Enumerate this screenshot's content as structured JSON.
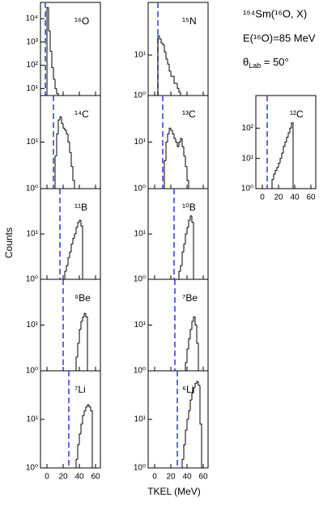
{
  "figure": {
    "annotation": [
      "¹⁵⁴Sm(¹⁶O, X)",
      "E(¹⁶O)=85 MeV"
    ],
    "angle": [
      "θ",
      "Lab",
      " = 50°"
    ],
    "xlabel": "TKEL (MeV)",
    "ylabel": "Counts"
  },
  "chart_data": [
    {
      "type": "histogram",
      "label": "¹⁶O",
      "bins": [
        0,
        2,
        4,
        6,
        8,
        10,
        12,
        14
      ],
      "values": [
        30000,
        3000,
        400,
        80,
        25,
        10,
        6
      ],
      "color": "#000000",
      "threshold": -2,
      "threshold_color": "#2b3bd6",
      "log_y": true,
      "xlim": [
        -8,
        66
      ],
      "xticks": [
        0,
        20,
        40,
        60
      ],
      "xtick_labels": false,
      "ylim": [
        5,
        50000
      ],
      "yticks": [
        {
          "value": 10,
          "label": "10¹"
        },
        {
          "value": 100,
          "label": "10²"
        },
        {
          "value": 1000,
          "label": "10³"
        },
        {
          "value": 10000,
          "label": "10⁴"
        }
      ]
    },
    {
      "type": "histogram",
      "label": "¹⁵N",
      "bins": [
        4,
        6,
        8,
        10,
        12,
        14,
        16,
        18,
        20,
        22,
        24,
        26,
        28,
        30,
        32
      ],
      "values": [
        30,
        25,
        20,
        18,
        12,
        8,
        6,
        4,
        3,
        3,
        2,
        2,
        1.5,
        1.2
      ],
      "color": "#000000",
      "threshold": 4,
      "threshold_color": "#2b3bd6",
      "log_y": true,
      "xlim": [
        -8,
        66
      ],
      "xticks": [
        0,
        20,
        40,
        60
      ],
      "xtick_labels": false,
      "ylim": [
        1,
        200
      ],
      "yticks": [
        {
          "value": 1,
          "label": "10⁰"
        },
        {
          "value": 10,
          "label": "10¹"
        }
      ]
    },
    {
      "type": "histogram",
      "label": "¹⁴C",
      "bins": [
        10,
        12,
        14,
        16,
        18,
        20,
        22,
        24,
        26,
        28,
        30,
        32,
        34
      ],
      "values": [
        5,
        15,
        30,
        35,
        25,
        20,
        18,
        15,
        10,
        6,
        3,
        1.5
      ],
      "color": "#000000",
      "threshold": 8,
      "threshold_color": "#2b3bd6",
      "log_y": true,
      "xlim": [
        -8,
        66
      ],
      "xticks": [
        0,
        20,
        40,
        60
      ],
      "xtick_labels": false,
      "ylim": [
        1,
        100
      ],
      "yticks": [
        {
          "value": 1,
          "label": "10⁰"
        },
        {
          "value": 10,
          "label": "10¹"
        }
      ]
    },
    {
      "type": "histogram",
      "label": "¹³C",
      "bins": [
        12,
        14,
        16,
        18,
        20,
        22,
        24,
        26,
        28,
        30,
        32,
        34,
        36,
        38,
        40,
        42
      ],
      "values": [
        4,
        10,
        15,
        20,
        18,
        15,
        12,
        10,
        8,
        10,
        12,
        8,
        5,
        3,
        1.5
      ],
      "color": "#000000",
      "threshold": 10,
      "threshold_color": "#2b3bd6",
      "log_y": true,
      "xlim": [
        -8,
        66
      ],
      "xticks": [
        0,
        20,
        40,
        60
      ],
      "xtick_labels": false,
      "ylim": [
        1,
        100
      ],
      "yticks": [
        {
          "value": 1,
          "label": "10⁰"
        },
        {
          "value": 10,
          "label": "10¹"
        }
      ]
    },
    {
      "type": "histogram",
      "label": "¹²C",
      "bins": [
        12,
        14,
        16,
        18,
        20,
        22,
        24,
        26,
        28,
        30,
        32,
        34,
        36,
        38
      ],
      "values": [
        2,
        3,
        4,
        5,
        7,
        10,
        15,
        25,
        35,
        50,
        70,
        100,
        150
      ],
      "color": "#000000",
      "threshold": 6,
      "threshold_color": "#2b3bd6",
      "log_y": true,
      "xlim": [
        -8,
        66
      ],
      "xticks": [
        0,
        20,
        40,
        60
      ],
      "xtick_labels": true,
      "ylim": [
        1,
        1200
      ],
      "yticks": [
        {
          "value": 1,
          "label": "10⁰"
        },
        {
          "value": 10,
          "label": "10¹"
        },
        {
          "value": 100,
          "label": "10²"
        }
      ]
    },
    {
      "type": "histogram",
      "label": "¹¹B",
      "bins": [
        22,
        24,
        26,
        28,
        30,
        32,
        34,
        36,
        38,
        40,
        42,
        44
      ],
      "values": [
        1.5,
        2,
        3,
        4,
        6,
        8,
        10,
        14,
        18,
        20,
        15
      ],
      "color": "#000000",
      "threshold": 16,
      "threshold_color": "#2b3bd6",
      "log_y": true,
      "xlim": [
        -8,
        66
      ],
      "xticks": [
        0,
        20,
        40,
        60
      ],
      "xtick_labels": false,
      "ylim": [
        1,
        100
      ],
      "yticks": [
        {
          "value": 1,
          "label": "10⁰"
        },
        {
          "value": 10,
          "label": "10¹"
        }
      ]
    },
    {
      "type": "histogram",
      "label": "¹⁰B",
      "bins": [
        30,
        32,
        34,
        36,
        38,
        40,
        42,
        44,
        46,
        48
      ],
      "values": [
        1.5,
        2,
        4,
        6,
        10,
        14,
        20,
        25,
        18
      ],
      "color": "#000000",
      "threshold": 24,
      "threshold_color": "#2b3bd6",
      "log_y": true,
      "xlim": [
        -8,
        66
      ],
      "xticks": [
        0,
        20,
        40,
        60
      ],
      "xtick_labels": false,
      "ylim": [
        1,
        100
      ],
      "yticks": [
        {
          "value": 1,
          "label": "10⁰"
        },
        {
          "value": 10,
          "label": "10¹"
        }
      ]
    },
    {
      "type": "histogram",
      "label": "⁹Be",
      "bins": [
        36,
        38,
        40,
        42,
        44,
        46,
        48,
        50
      ],
      "values": [
        2,
        4,
        8,
        12,
        15,
        18,
        15
      ],
      "color": "#000000",
      "threshold": 20,
      "threshold_color": "#2b3bd6",
      "log_y": true,
      "xlim": [
        -8,
        66
      ],
      "xticks": [
        0,
        20,
        40,
        60
      ],
      "xtick_labels": false,
      "ylim": [
        1,
        100
      ],
      "yticks": [
        {
          "value": 1,
          "label": "10⁰"
        },
        {
          "value": 10,
          "label": "10¹"
        }
      ]
    },
    {
      "type": "histogram",
      "label": "⁷Be",
      "bins": [
        38,
        40,
        42,
        44,
        46,
        48,
        50,
        52,
        54
      ],
      "values": [
        1.5,
        3,
        5,
        8,
        12,
        15,
        10,
        4
      ],
      "color": "#000000",
      "threshold": 25,
      "threshold_color": "#2b3bd6",
      "log_y": true,
      "xlim": [
        -8,
        66
      ],
      "xticks": [
        0,
        20,
        40,
        60
      ],
      "xtick_labels": false,
      "ylim": [
        1,
        100
      ],
      "yticks": [
        {
          "value": 1,
          "label": "10⁰"
        },
        {
          "value": 10,
          "label": "10¹"
        }
      ]
    },
    {
      "type": "histogram",
      "label": "⁷Li",
      "bins": [
        36,
        38,
        40,
        42,
        44,
        46,
        48,
        50,
        52,
        54,
        56
      ],
      "values": [
        1.5,
        3,
        5,
        8,
        12,
        15,
        18,
        20,
        18,
        15
      ],
      "color": "#000000",
      "threshold": 27,
      "threshold_color": "#2b3bd6",
      "log_y": true,
      "xlim": [
        -8,
        66
      ],
      "xticks": [
        0,
        20,
        40,
        60
      ],
      "xtick_labels": true,
      "ylim": [
        1,
        100
      ],
      "yticks": [
        {
          "value": 1,
          "label": "10⁰"
        },
        {
          "value": 10,
          "label": "10¹"
        }
      ]
    },
    {
      "type": "histogram",
      "label": "⁶Li",
      "bins": [
        34,
        36,
        38,
        40,
        42,
        44,
        46,
        48,
        50,
        52,
        54,
        56,
        58
      ],
      "values": [
        1.5,
        3,
        6,
        10,
        15,
        25,
        35,
        45,
        55,
        60,
        50,
        8
      ],
      "color": "#000000",
      "threshold": 28,
      "threshold_color": "#2b3bd6",
      "log_y": true,
      "xlim": [
        -8,
        66
      ],
      "xticks": [
        0,
        20,
        40,
        60
      ],
      "xtick_labels": true,
      "ylim": [
        1,
        100
      ],
      "yticks": [
        {
          "value": 1,
          "label": "10⁰"
        },
        {
          "value": 10,
          "label": "10¹"
        }
      ]
    }
  ]
}
